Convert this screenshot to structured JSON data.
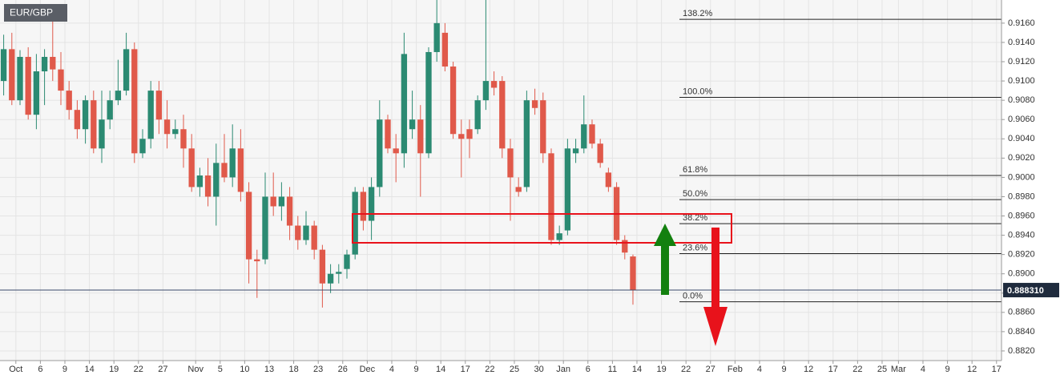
{
  "chart_data": {
    "type": "candlestick",
    "title": "EUR/GBP",
    "open": [
      0.91,
      0.9133,
      0.908,
      0.9125,
      0.9065,
      0.911,
      0.9125,
      0.9112,
      0.909,
      0.907,
      0.905,
      0.908,
      0.903,
      0.906,
      0.908,
      0.909,
      0.9133,
      0.9025,
      0.904,
      0.909,
      0.906,
      0.9045,
      0.905,
      0.903,
      0.899,
      0.9002,
      0.898,
      0.9015,
      0.9,
      0.903,
      0.8985,
      0.8915,
      0.8915,
      0.898,
      0.897,
      0.898,
      0.895,
      0.8935,
      0.895,
      0.8925,
      0.889,
      0.89,
      0.8905,
      0.892,
      0.8985,
      0.8955,
      0.899,
      0.906,
      0.903,
      0.9025,
      0.905,
      0.906,
      0.9025,
      0.913,
      0.915,
      0.9115,
      0.9045,
      0.905,
      0.905,
      0.908,
      0.91,
      0.91,
      0.903,
      0.899,
      0.899,
      0.908,
      0.908,
      0.9025,
      0.8935,
      0.8945,
      0.9025,
      0.903,
      0.9055,
      0.9035,
      0.9005,
      0.899,
      0.8935,
      0.8918
    ],
    "high": [
      0.9148,
      0.915,
      0.9132,
      0.9135,
      0.9128,
      0.9133,
      0.9165,
      0.913,
      0.91,
      0.908,
      0.9085,
      0.909,
      0.909,
      0.909,
      0.9122,
      0.915,
      0.914,
      0.905,
      0.91,
      0.91,
      0.908,
      0.906,
      0.9065,
      0.9045,
      0.901,
      0.902,
      0.9035,
      0.9045,
      0.9055,
      0.905,
      0.8995,
      0.8925,
      0.9005,
      0.9005,
      0.8995,
      0.899,
      0.896,
      0.8965,
      0.8955,
      0.893,
      0.891,
      0.891,
      0.8925,
      0.899,
      0.899,
      0.9,
      0.908,
      0.9065,
      0.9045,
      0.915,
      0.909,
      0.9075,
      0.9135,
      0.9195,
      0.916,
      0.912,
      0.906,
      0.906,
      0.9085,
      0.919,
      0.911,
      0.9105,
      0.904,
      0.9,
      0.909,
      0.9092,
      0.9088,
      0.903,
      0.895,
      0.904,
      0.904,
      0.9085,
      0.906,
      0.904,
      0.901,
      0.8995,
      0.894,
      0.892
    ],
    "low": [
      0.9085,
      0.9075,
      0.9075,
      0.906,
      0.905,
      0.9075,
      0.91,
      0.9075,
      0.906,
      0.904,
      0.9035,
      0.9025,
      0.9015,
      0.905,
      0.9075,
      0.9085,
      0.9015,
      0.902,
      0.903,
      0.9045,
      0.903,
      0.904,
      0.901,
      0.8985,
      0.898,
      0.897,
      0.895,
      0.8995,
      0.899,
      0.8975,
      0.889,
      0.8875,
      0.891,
      0.896,
      0.8955,
      0.8935,
      0.8925,
      0.893,
      0.8915,
      0.8865,
      0.888,
      0.889,
      0.8895,
      0.8915,
      0.8945,
      0.8935,
      0.898,
      0.9025,
      0.8995,
      0.901,
      0.904,
      0.898,
      0.902,
      0.912,
      0.911,
      0.904,
      0.9,
      0.902,
      0.9045,
      0.907,
      0.9085,
      0.902,
      0.8955,
      0.898,
      0.8985,
      0.9065,
      0.9015,
      0.893,
      0.893,
      0.894,
      0.9015,
      0.9025,
      0.903,
      0.901,
      0.8985,
      0.893,
      0.8915,
      0.8868
    ],
    "close": [
      0.9133,
      0.908,
      0.9125,
      0.9065,
      0.911,
      0.9125,
      0.9112,
      0.909,
      0.907,
      0.905,
      0.908,
      0.903,
      0.906,
      0.908,
      0.909,
      0.9133,
      0.9025,
      0.904,
      0.909,
      0.906,
      0.9045,
      0.905,
      0.903,
      0.899,
      0.9002,
      0.898,
      0.9015,
      0.9,
      0.903,
      0.8985,
      0.8915,
      0.8913,
      0.898,
      0.897,
      0.898,
      0.895,
      0.8935,
      0.895,
      0.8925,
      0.889,
      0.89,
      0.8902,
      0.892,
      0.8985,
      0.8955,
      0.899,
      0.906,
      0.903,
      0.9025,
      0.9128,
      0.906,
      0.9025,
      0.913,
      0.916,
      0.9115,
      0.9045,
      0.904,
      0.904,
      0.908,
      0.91,
      0.9093,
      0.903,
      0.9,
      0.8985,
      0.908,
      0.9072,
      0.9025,
      0.8935,
      0.8942,
      0.903,
      0.903,
      0.9055,
      0.9035,
      0.9015,
      0.899,
      0.8935,
      0.8922,
      0.8883
    ],
    "up_color": "#2b8a72",
    "down_color": "#e0594a",
    "xlim": [
      -0.45,
      122.1
    ],
    "ylim": [
      0.881,
      0.9184
    ],
    "xticks": [
      {
        "value": 1,
        "label": "Oct"
      },
      {
        "value": 4,
        "label": "6"
      },
      {
        "value": 7,
        "label": "9"
      },
      {
        "value": 10,
        "label": "14"
      },
      {
        "value": 13,
        "label": "19"
      },
      {
        "value": 16,
        "label": "22"
      },
      {
        "value": 19,
        "label": "27"
      },
      {
        "value": 23,
        "label": "Nov"
      },
      {
        "value": 26,
        "label": "5"
      },
      {
        "value": 29,
        "label": "10"
      },
      {
        "value": 32,
        "label": "13"
      },
      {
        "value": 35,
        "label": "18"
      },
      {
        "value": 38,
        "label": "23"
      },
      {
        "value": 41,
        "label": "26"
      },
      {
        "value": 44,
        "label": "Dec"
      },
      {
        "value": 47,
        "label": "4"
      },
      {
        "value": 50,
        "label": "9"
      },
      {
        "value": 53,
        "label": "14"
      },
      {
        "value": 56,
        "label": "17"
      },
      {
        "value": 59,
        "label": "22"
      },
      {
        "value": 62,
        "label": "25"
      },
      {
        "value": 65,
        "label": "30"
      },
      {
        "value": 68,
        "label": "Jan"
      },
      {
        "value": 71,
        "label": "6"
      },
      {
        "value": 74,
        "label": "11"
      },
      {
        "value": 77,
        "label": "14"
      },
      {
        "value": 80,
        "label": "19"
      },
      {
        "value": 83,
        "label": "22"
      },
      {
        "value": 86,
        "label": "27"
      },
      {
        "value": 89,
        "label": "Feb"
      },
      {
        "value": 92,
        "label": "4"
      },
      {
        "value": 95,
        "label": "9"
      },
      {
        "value": 98,
        "label": "12"
      },
      {
        "value": 101,
        "label": "17"
      },
      {
        "value": 104,
        "label": "22"
      },
      {
        "value": 107,
        "label": "25"
      },
      {
        "value": 109,
        "label": "Mar"
      },
      {
        "value": 112,
        "label": "4"
      },
      {
        "value": 115,
        "label": "9"
      },
      {
        "value": 118,
        "label": "12"
      },
      {
        "value": 121,
        "label": "17"
      }
    ],
    "yticks": [
      {
        "value": 0.882,
        "label": "0.8820"
      },
      {
        "value": 0.884,
        "label": "0.8840"
      },
      {
        "value": 0.886,
        "label": "0.8860"
      },
      {
        "value": 0.888,
        "label": "0.8880"
      },
      {
        "value": 0.89,
        "label": "0.8900"
      },
      {
        "value": 0.892,
        "label": "0.8920"
      },
      {
        "value": 0.894,
        "label": "0.8940"
      },
      {
        "value": 0.896,
        "label": "0.8960"
      },
      {
        "value": 0.898,
        "label": "0.8980"
      },
      {
        "value": 0.9,
        "label": "0.9000"
      },
      {
        "value": 0.902,
        "label": "0.9020"
      },
      {
        "value": 0.904,
        "label": "0.9040"
      },
      {
        "value": 0.906,
        "label": "0.9060"
      },
      {
        "value": 0.908,
        "label": "0.9080"
      },
      {
        "value": 0.91,
        "label": "0.9100"
      },
      {
        "value": 0.912,
        "label": "0.9120"
      },
      {
        "value": 0.914,
        "label": "0.9140"
      },
      {
        "value": 0.916,
        "label": "0.9160"
      }
    ],
    "grid": true,
    "last_price": {
      "value": 0.88831,
      "label": "0.888310"
    },
    "fib_levels": [
      {
        "value": 0.9164,
        "label": "138.2%"
      },
      {
        "value": 0.9083,
        "label": "100.0%"
      },
      {
        "value": 0.9002,
        "label": "61.8%"
      },
      {
        "value": 0.8977,
        "label": "50.0%"
      },
      {
        "value": 0.8952,
        "label": "38.2%"
      },
      {
        "value": 0.8921,
        "label": "23.6%"
      },
      {
        "value": 0.8871,
        "label": "0.0%"
      }
    ]
  }
}
